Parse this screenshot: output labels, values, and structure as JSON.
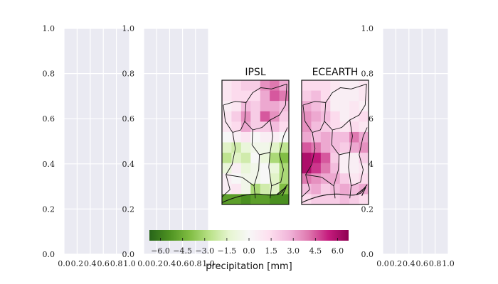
{
  "chart_data": [
    {
      "type": "table",
      "panel": "left-1",
      "xlim": [
        0.0,
        1.0
      ],
      "ylim": [
        0.0,
        1.0
      ],
      "xticks": [
        0.0,
        0.2,
        0.4,
        0.6,
        0.8,
        1.0
      ],
      "xtick_labels": [
        "0.0",
        "0.2",
        "0.4",
        "0.6",
        "0.8",
        "1.0"
      ],
      "yticks": [
        0.0,
        0.2,
        0.4,
        0.6,
        0.8,
        1.0
      ],
      "ytick_labels": [
        "0.0",
        "0.2",
        "0.4",
        "0.6",
        "0.8",
        "1.0"
      ],
      "grid": true,
      "background": "#eaeaf2"
    },
    {
      "type": "table",
      "panel": "left-2",
      "xlim": [
        0.0,
        1.0
      ],
      "ylim": [
        0.0,
        1.0
      ],
      "xticks": [
        0.0,
        0.2,
        0.4,
        0.6,
        0.8,
        1.0
      ],
      "xtick_labels": [
        "0.0",
        "0.2",
        "0.4",
        "0.6",
        "0.8",
        "1.0"
      ],
      "yticks": [
        0.0,
        0.2,
        0.4,
        0.6,
        0.8,
        1.0
      ],
      "ytick_labels": [
        "0.0",
        "0.2",
        "0.4",
        "0.6",
        "0.8",
        "1.0"
      ],
      "grid": true,
      "background": "#eaeaf2"
    },
    {
      "type": "table",
      "panel": "right",
      "xlim": [
        0.0,
        1.0
      ],
      "ylim": [
        0.0,
        1.0
      ],
      "xticks": [
        0.0,
        0.2,
        0.4,
        0.6,
        0.8,
        1.0
      ],
      "xtick_labels": [
        "0.0",
        "0.2",
        "0.4",
        "0.6",
        "0.8",
        "1.0"
      ],
      "yticks": [
        0.0,
        0.2,
        0.4,
        0.6,
        0.8,
        1.0
      ],
      "ytick_labels": [
        "0.0",
        "0.2",
        "0.4",
        "0.6",
        "0.8",
        "1.0"
      ],
      "grid": true,
      "background": "#eaeaf2"
    },
    {
      "type": "heatmap",
      "title": "IPSL",
      "rows": 12,
      "cols": 7,
      "values": [
        [
          1.0,
          1.5,
          2.0,
          2.0,
          3.5,
          4.0,
          3.0
        ],
        [
          1.0,
          1.5,
          1.5,
          1.5,
          3.0,
          4.5,
          4.0
        ],
        [
          0.5,
          1.0,
          2.5,
          2.0,
          3.0,
          3.0,
          2.5
        ],
        [
          1.0,
          2.0,
          3.5,
          2.0,
          4.5,
          3.5,
          2.0
        ],
        [
          1.0,
          1.5,
          3.0,
          2.0,
          2.0,
          2.5,
          1.5
        ],
        [
          0.0,
          0.5,
          1.0,
          0.0,
          0.5,
          0.5,
          0.0
        ],
        [
          -1.5,
          -2.0,
          -1.0,
          -0.5,
          -0.5,
          -1.5,
          -2.5
        ],
        [
          -2.5,
          -1.5,
          -2.0,
          0.0,
          -1.0,
          -3.0,
          -4.0
        ],
        [
          -1.0,
          0.5,
          -1.0,
          -0.5,
          0.0,
          -1.0,
          -3.0
        ],
        [
          0.5,
          0.0,
          -0.5,
          -0.5,
          0.0,
          -1.5,
          -3.0
        ],
        [
          0.5,
          1.0,
          -0.5,
          -3.0,
          -2.0,
          -1.5,
          -4.0
        ],
        [
          -5.0,
          -5.0,
          -5.5,
          -5.0,
          -5.0,
          -5.5,
          -5.5
        ]
      ]
    },
    {
      "type": "heatmap",
      "title": "ECEARTH",
      "rows": 12,
      "cols": 7,
      "values": [
        [
          1.5,
          1.5,
          1.5,
          1.0,
          0.5,
          0.5,
          1.0
        ],
        [
          2.0,
          2.5,
          1.5,
          0.5,
          0.5,
          0.5,
          1.0
        ],
        [
          3.0,
          2.5,
          2.0,
          0.5,
          0.5,
          1.0,
          0.5
        ],
        [
          3.5,
          3.0,
          2.5,
          1.5,
          0.5,
          1.0,
          1.5
        ],
        [
          3.5,
          2.5,
          2.0,
          1.5,
          1.0,
          1.5,
          1.0
        ],
        [
          3.0,
          2.5,
          3.0,
          2.5,
          2.5,
          4.0,
          3.0
        ],
        [
          4.5,
          4.0,
          3.0,
          2.5,
          2.0,
          3.0,
          3.5
        ],
        [
          6.0,
          5.5,
          4.5,
          2.0,
          0.5,
          0.5,
          2.0
        ],
        [
          6.0,
          5.0,
          4.0,
          2.5,
          0.5,
          0.5,
          1.0
        ],
        [
          4.0,
          3.5,
          3.0,
          3.0,
          2.0,
          1.0,
          1.5
        ],
        [
          2.5,
          3.0,
          2.0,
          2.5,
          3.0,
          2.5,
          3.0
        ],
        [
          1.5,
          2.0,
          2.0,
          2.0,
          2.5,
          2.0,
          1.5
        ]
      ]
    }
  ],
  "colorbar": {
    "label": "precipitation [mm]",
    "range": [
      -6.75,
      6.75
    ],
    "ticks": [
      -6.0,
      -4.5,
      -3.0,
      -1.5,
      0.0,
      1.5,
      3.0,
      4.5,
      6.0
    ],
    "tick_labels": [
      "−6.0",
      "−4.5",
      "−3.0",
      "−1.5",
      "0.0",
      "1.5",
      "3.0",
      "4.5",
      "6.0"
    ],
    "colormap": "PiYG_r",
    "colors": [
      "#276419",
      "#4d9221",
      "#7fbc41",
      "#b8e186",
      "#e6f5d0",
      "#f7f7f7",
      "#fde0ef",
      "#f1b6da",
      "#de77ae",
      "#c51b7d",
      "#8e0152"
    ]
  }
}
